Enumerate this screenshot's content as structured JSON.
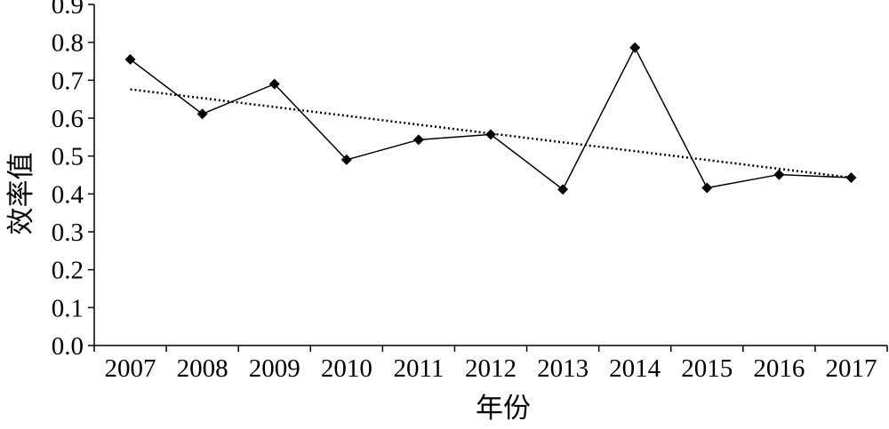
{
  "chart_data": {
    "type": "line",
    "title": "",
    "xlabel": "年份",
    "ylabel": "效率值",
    "categories": [
      "2007",
      "2008",
      "2009",
      "2010",
      "2011",
      "2012",
      "2013",
      "2014",
      "2015",
      "2016",
      "2017"
    ],
    "series": [
      {
        "values": [
          0.755,
          0.611,
          0.69,
          0.49,
          0.543,
          0.557,
          0.412,
          0.786,
          0.416,
          0.451,
          0.443
        ],
        "marker": "diamond",
        "color": "#000000"
      }
    ],
    "trendline": {
      "kind": "linear",
      "style": "dotted",
      "start": 0.676,
      "end": 0.443
    },
    "ylim": [
      0.0,
      0.9
    ],
    "yticks": [
      "0.0",
      "0.1",
      "0.2",
      "0.3",
      "0.4",
      "0.5",
      "0.6",
      "0.7",
      "0.8",
      "0.9"
    ],
    "grid": false,
    "legend": "none"
  }
}
